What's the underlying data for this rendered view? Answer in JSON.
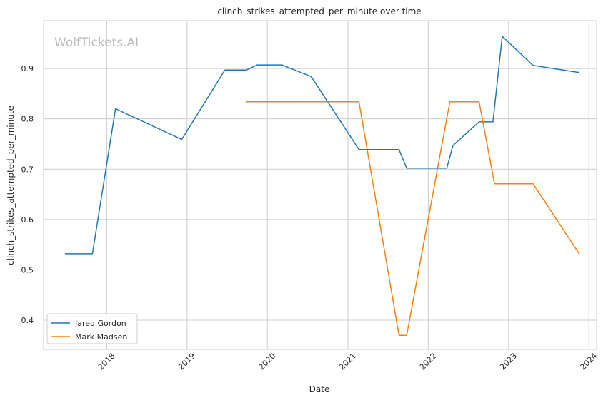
{
  "chart_data": {
    "type": "line",
    "title": "clinch_strikes_attempted_per_minute over time",
    "xlabel": "Date",
    "ylabel": "clinch_strikes_attempted_per_minute",
    "watermark": "WolfTickets.AI",
    "x_ticks": [
      "2018",
      "2019",
      "2020",
      "2021",
      "2022",
      "2023",
      "2024"
    ],
    "y_ticks": [
      "0.4",
      "0.5",
      "0.6",
      "0.7",
      "0.8",
      "0.9"
    ],
    "xlim": [
      "2017-03-20",
      "2024-02-05"
    ],
    "ylim": [
      0.342,
      0.995
    ],
    "grid": true,
    "legend_position": "lower-left",
    "series": [
      {
        "name": "Jared Gordon",
        "color": "#1f77b4",
        "points": [
          [
            "2017-06-25",
            0.532
          ],
          [
            "2017-10-28",
            0.532
          ],
          [
            "2018-02-10",
            0.82
          ],
          [
            "2018-12-08",
            0.759
          ],
          [
            "2019-06-22",
            0.897
          ],
          [
            "2019-09-28",
            0.897
          ],
          [
            "2019-11-16",
            0.907
          ],
          [
            "2020-03-07",
            0.907
          ],
          [
            "2020-07-18",
            0.884
          ],
          [
            "2021-02-20",
            0.739
          ],
          [
            "2021-08-21",
            0.739
          ],
          [
            "2021-09-25",
            0.702
          ],
          [
            "2022-03-26",
            0.702
          ],
          [
            "2022-04-23",
            0.747
          ],
          [
            "2022-08-20",
            0.794
          ],
          [
            "2022-10-22",
            0.794
          ],
          [
            "2022-12-03",
            0.964
          ],
          [
            "2023-04-22",
            0.906
          ],
          [
            "2023-11-18",
            0.892
          ]
        ]
      },
      {
        "name": "Mark Madsen",
        "color": "#ff7f0e",
        "points": [
          [
            "2019-09-28",
            0.834
          ],
          [
            "2021-02-20",
            0.834
          ],
          [
            "2021-08-21",
            0.37
          ],
          [
            "2021-09-25",
            0.37
          ],
          [
            "2022-04-09",
            0.834
          ],
          [
            "2022-08-20",
            0.834
          ],
          [
            "2022-10-29",
            0.671
          ],
          [
            "2023-04-22",
            0.671
          ],
          [
            "2023-11-18",
            0.532
          ]
        ]
      }
    ]
  }
}
